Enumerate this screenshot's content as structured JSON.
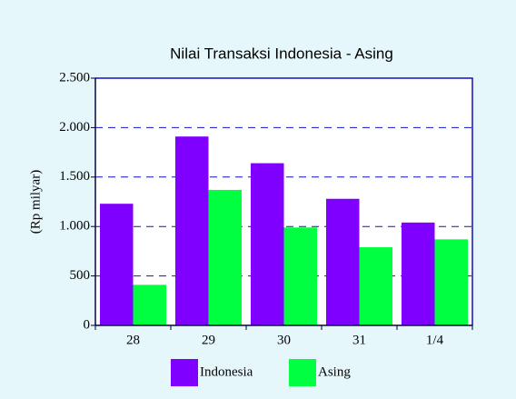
{
  "chart_data": {
    "type": "bar",
    "title": "Nilai Transaksi Indonesia - Asing",
    "y_label": "(Rp milyar)",
    "categories": [
      "28",
      "29",
      "30",
      "31",
      "1/4"
    ],
    "series": [
      {
        "name": "Indonesia",
        "color": "#8000ff",
        "values": [
          1230,
          1910,
          1640,
          1280,
          1040
        ]
      },
      {
        "name": "Asing",
        "color": "#00ff40",
        "values": [
          410,
          1370,
          990,
          790,
          870
        ]
      }
    ],
    "ylim": [
      0,
      2500
    ],
    "yticks": [
      0,
      500,
      {
        "value": 1000,
        "label": "1.000"
      },
      {
        "value": 1500,
        "label": "1.500"
      },
      {
        "value": 2000,
        "label": "2.000"
      },
      {
        "value": 2500,
        "label": "2.500"
      }
    ],
    "grid": true,
    "legend": "bottom"
  }
}
